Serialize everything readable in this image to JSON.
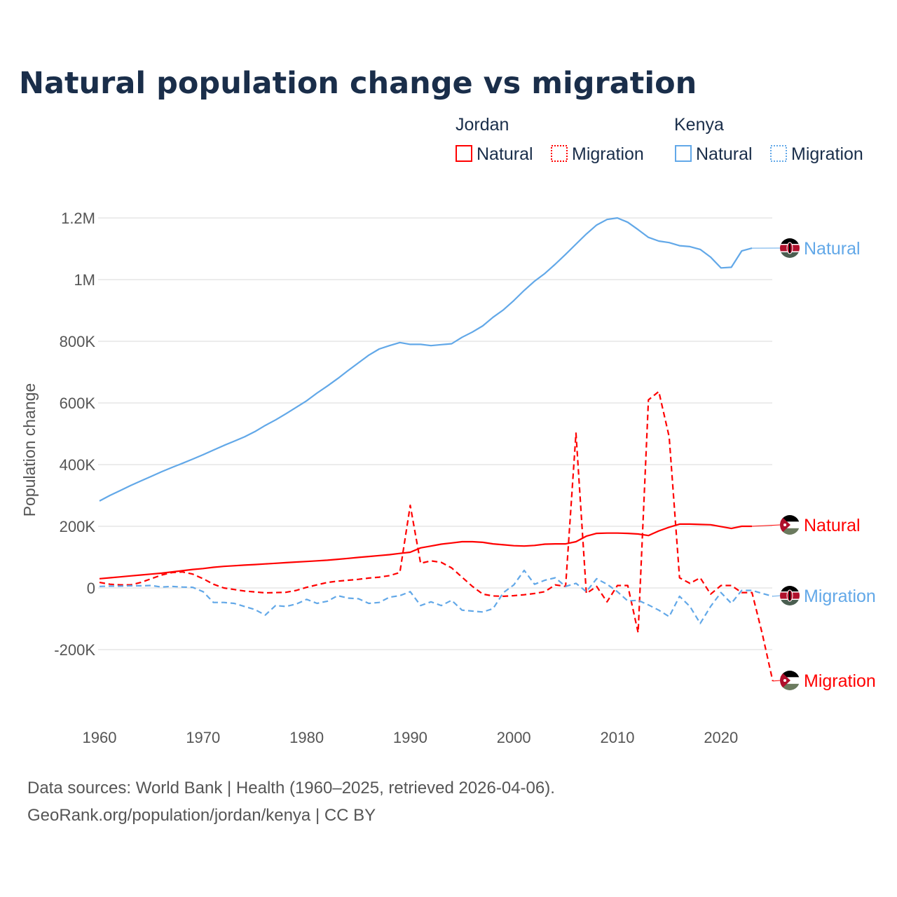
{
  "title": "Natural population change vs migration",
  "legend": {
    "groups": [
      {
        "country": "Jordan",
        "items": [
          {
            "label": "Natural",
            "style": "solid"
          },
          {
            "label": "Migration",
            "style": "dotted"
          }
        ]
      },
      {
        "country": "Kenya",
        "items": [
          {
            "label": "Natural",
            "style": "solid"
          },
          {
            "label": "Migration",
            "style": "dotted"
          }
        ]
      }
    ]
  },
  "colors": {
    "jordan": "#ff0000",
    "kenya": "#62a8e8"
  },
  "footer": {
    "line1": "Data sources: World Bank | Health (1960–2025, retrieved 2026-04-06).",
    "line2": "GeoRank.org/population/jordan/kenya | CC BY"
  },
  "chart_data": {
    "type": "line",
    "title": "Natural population change vs migration",
    "xlabel": "",
    "ylabel": "Population change",
    "xlim": [
      1960,
      2025
    ],
    "ylim": [
      -300000,
      1200000
    ],
    "x_ticks": [
      1960,
      1970,
      1980,
      1990,
      2000,
      2010,
      2020
    ],
    "x_tick_labels": [
      "1960",
      "1970",
      "1980",
      "1990",
      "2000",
      "2010",
      "2020"
    ],
    "y_ticks": [
      1200000,
      1000000,
      800000,
      600000,
      400000,
      200000,
      0,
      -200000
    ],
    "y_tick_labels": [
      "1.2M",
      "1M",
      "800K",
      "600K",
      "400K",
      "200K",
      "0",
      "-200K"
    ],
    "grid": true,
    "legend_position": "top-right",
    "unit": "thousands",
    "series": [
      {
        "name": "Kenya Natural",
        "country": "Kenya",
        "end_label": "Natural",
        "color": "#62a8e8",
        "dash": false,
        "start_year": 1960,
        "values": [
          282,
          300,
          316,
          332,
          347,
          362,
          377,
          391,
          404,
          418,
          432,
          447,
          462,
          476,
          490,
          507,
          527,
          545,
          565,
          586,
          607,
          632,
          655,
          679,
          705,
          730,
          755,
          775,
          786,
          796,
          790,
          790,
          786,
          789,
          792,
          813,
          830,
          850,
          878,
          902,
          932,
          965,
          995,
          1020,
          1050,
          1082,
          1115,
          1148,
          1177,
          1195,
          1200,
          1186,
          1162,
          1137,
          1125,
          1120,
          1110,
          1107,
          1098,
          1073,
          1038,
          1040,
          1093,
          1102
        ]
      },
      {
        "name": "Jordan Natural",
        "country": "Jordan",
        "end_label": "Natural",
        "color": "#ff0000",
        "dash": false,
        "start_year": 1960,
        "values": [
          30,
          33,
          36,
          39,
          42,
          45,
          48,
          52,
          56,
          60,
          63,
          67,
          70,
          72,
          74,
          76,
          78,
          80,
          82,
          84,
          86,
          88,
          90,
          93,
          96,
          99,
          102,
          105,
          108,
          112,
          116,
          130,
          136,
          142,
          146,
          150,
          150,
          148,
          143,
          140,
          137,
          136,
          138,
          142,
          143,
          143,
          150,
          168,
          177,
          178,
          178,
          177,
          175,
          170,
          185,
          197,
          207,
          207,
          206,
          205,
          199,
          193,
          200,
          200
        ]
      },
      {
        "name": "Jordan Migration",
        "country": "Jordan",
        "end_label": "Migration",
        "color": "#ff0000",
        "dash": true,
        "start_year": 1960,
        "values": [
          18,
          12,
          10,
          10,
          18,
          30,
          42,
          50,
          52,
          45,
          30,
          12,
          0,
          -5,
          -10,
          -13,
          -16,
          -15,
          -14,
          -8,
          2,
          10,
          18,
          22,
          25,
          28,
          32,
          35,
          40,
          50,
          268,
          80,
          88,
          83,
          65,
          35,
          5,
          -20,
          -26,
          -27,
          -25,
          -22,
          -18,
          -12,
          10,
          5,
          502,
          -18,
          5,
          -45,
          8,
          8,
          -145,
          610,
          637,
          490,
          33,
          15,
          33,
          -20,
          8,
          8,
          -15,
          -15,
          -150,
          -302
        ]
      },
      {
        "name": "Kenya Migration",
        "country": "Kenya",
        "end_label": "Migration",
        "color": "#62a8e8",
        "dash": true,
        "start_year": 1960,
        "values": [
          5,
          6,
          6,
          7,
          7,
          8,
          3,
          5,
          3,
          2,
          -12,
          -47,
          -47,
          -50,
          -60,
          -70,
          -88,
          -57,
          -60,
          -52,
          -37,
          -50,
          -43,
          -25,
          -33,
          -35,
          -50,
          -47,
          -30,
          -25,
          -12,
          -57,
          -45,
          -57,
          -40,
          -72,
          -75,
          -78,
          -67,
          -15,
          10,
          57,
          12,
          25,
          33,
          5,
          15,
          -12,
          30,
          12,
          -12,
          -42,
          -40,
          -55,
          -72,
          -93,
          -27,
          -60,
          -115,
          -60,
          -15,
          -50,
          -8,
          -8,
          -18,
          -27
        ]
      }
    ]
  }
}
